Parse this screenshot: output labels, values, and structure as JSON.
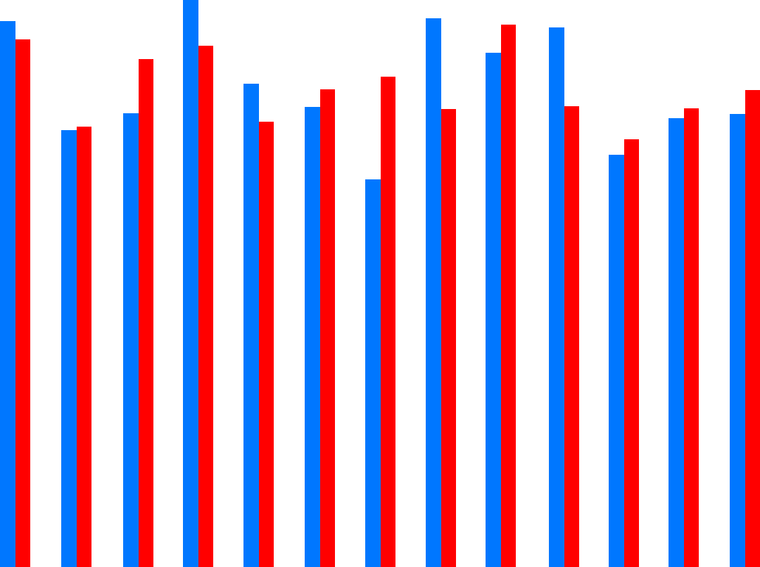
{
  "chart_data": {
    "type": "bar",
    "title": "",
    "xlabel": "",
    "ylabel": "",
    "grid": false,
    "legend": "none",
    "ylim": [
      0,
      806
    ],
    "series": [
      {
        "color": "#0077ff",
        "values": [
          776,
          621,
          645,
          806,
          687,
          654,
          551,
          780,
          731,
          767,
          586,
          638,
          644
        ]
      },
      {
        "color": "#ff0000",
        "values": [
          750,
          626,
          722,
          741,
          633,
          679,
          697,
          651,
          771,
          655,
          608,
          652,
          678
        ]
      }
    ]
  }
}
